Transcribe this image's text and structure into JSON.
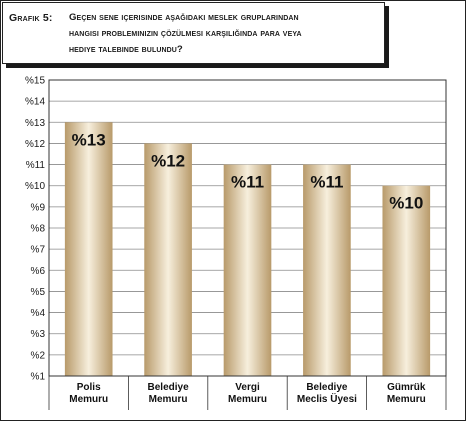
{
  "title": {
    "prefix": "Grafik 5:",
    "lines": [
      "Geçen sene içerisinde aşağıdaki meslek gruplarından",
      "hangisi probleminizin çözülmesi karşılığında para veya",
      "hediye talebinde bulundu?"
    ]
  },
  "colors": {
    "bar_dark": "#b89a6a",
    "bar_light": "#f7efdd",
    "grid": "#8a8a8a",
    "text": "#1a1a1a"
  },
  "chart_data": {
    "type": "bar",
    "categories": [
      [
        "Polis",
        "Memuru"
      ],
      [
        "Belediye",
        "Memuru"
      ],
      [
        "Vergi",
        "Memuru"
      ],
      [
        "Belediye",
        "Meclis Üyesi"
      ],
      [
        "Gümrük",
        "Memuru"
      ]
    ],
    "values": [
      13,
      12,
      11,
      11,
      10
    ],
    "data_labels": [
      "%13",
      "%12",
      "%11",
      "%11",
      "%10"
    ],
    "ylim": [
      1,
      15
    ],
    "yticks": [
      1,
      2,
      3,
      4,
      5,
      6,
      7,
      8,
      9,
      10,
      11,
      12,
      13,
      14,
      15
    ],
    "ytick_labels": [
      "%1",
      "%2",
      "%3",
      "%4",
      "%5",
      "%6",
      "%7",
      "%8",
      "%9",
      "%10",
      "%11",
      "%12",
      "%13",
      "%14",
      "%15"
    ],
    "grid": true,
    "legend": "none"
  }
}
